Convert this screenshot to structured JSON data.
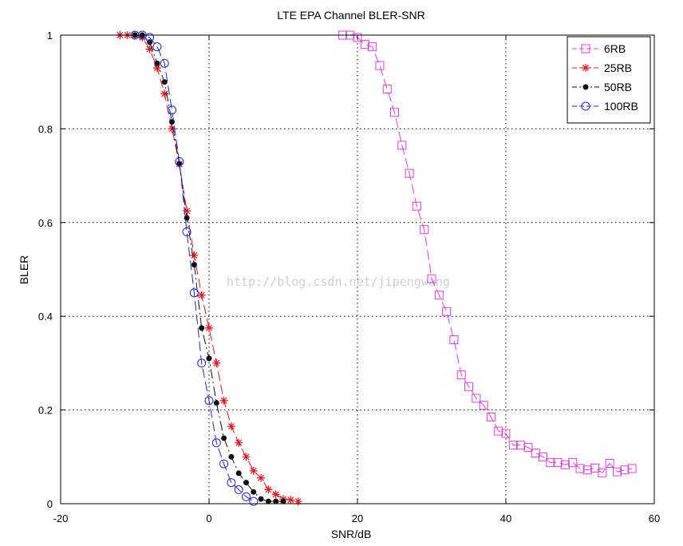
{
  "chart_data": {
    "type": "line",
    "title": "LTE EPA Channel BLER-SNR",
    "xlabel": "SNR/dB",
    "ylabel": "BLER",
    "xlim": [
      -20,
      60
    ],
    "ylim": [
      0,
      1
    ],
    "xticks": [
      "-20",
      "0",
      "20",
      "40",
      "60"
    ],
    "yticks": [
      "0",
      "0.2",
      "0.4",
      "0.6",
      "0.8",
      "1"
    ],
    "grid": true,
    "legend_position": "top-right",
    "watermark": "http://blog.csdn.net/jipengwang",
    "series": [
      {
        "name": "6RB",
        "color": "#e83ce0",
        "marker": "square",
        "dash": "dashed",
        "x": [
          18,
          19,
          20,
          21,
          22,
          23,
          24,
          25,
          26,
          27,
          28,
          29,
          30,
          31,
          32,
          33,
          34,
          35,
          36,
          37,
          38,
          39,
          40,
          41,
          42,
          43,
          44,
          45,
          46,
          47,
          48,
          49,
          50,
          51,
          52,
          53,
          54,
          55,
          56,
          57
        ],
        "y": [
          1.0,
          1.0,
          0.995,
          0.98,
          0.975,
          0.935,
          0.885,
          0.835,
          0.765,
          0.705,
          0.635,
          0.585,
          0.48,
          0.445,
          0.41,
          0.35,
          0.275,
          0.25,
          0.225,
          0.21,
          0.185,
          0.155,
          0.15,
          0.125,
          0.125,
          0.12,
          0.108,
          0.1,
          0.088,
          0.088,
          0.083,
          0.088,
          0.075,
          0.072,
          0.076,
          0.066,
          0.086,
          0.068,
          0.072,
          0.075
        ]
      },
      {
        "name": "25RB",
        "color": "#e8141e",
        "marker": "star",
        "dash": "dashed",
        "x": [
          -12,
          -11,
          -10,
          -9,
          -8,
          -7,
          -6,
          -5,
          -4,
          -3,
          -2,
          -1,
          0,
          1,
          2,
          3,
          4,
          5,
          6,
          7,
          8,
          9,
          10,
          11,
          12
        ],
        "y": [
          1.0,
          1.0,
          1.0,
          0.995,
          0.97,
          0.93,
          0.875,
          0.8,
          0.725,
          0.625,
          0.53,
          0.445,
          0.375,
          0.3,
          0.22,
          0.165,
          0.13,
          0.1,
          0.07,
          0.055,
          0.03,
          0.02,
          0.01,
          0.008,
          0.005
        ]
      },
      {
        "name": "50RB",
        "color": "#111111",
        "marker": "dot",
        "dash": "dashdot",
        "x": [
          -10,
          -9,
          -8,
          -7,
          -6,
          -5,
          -4,
          -3,
          -2,
          -1,
          0,
          1,
          2,
          3,
          4,
          5,
          6,
          7,
          8,
          9,
          10
        ],
        "y": [
          1.0,
          1.0,
          0.985,
          0.94,
          0.9,
          0.815,
          0.725,
          0.61,
          0.51,
          0.375,
          0.31,
          0.215,
          0.14,
          0.1,
          0.065,
          0.045,
          0.025,
          0.01,
          0.005,
          0.005,
          0.005
        ]
      },
      {
        "name": "100RB",
        "color": "#1c26e0",
        "marker": "circle",
        "dash": "dashed",
        "x": [
          -10,
          -9,
          -8,
          -7,
          -6,
          -5,
          -4,
          -3,
          -2,
          -1,
          0,
          1,
          2,
          3,
          4,
          5,
          6
        ],
        "y": [
          1.0,
          1.0,
          0.995,
          0.975,
          0.94,
          0.84,
          0.73,
          0.58,
          0.45,
          0.3,
          0.22,
          0.13,
          0.085,
          0.045,
          0.03,
          0.015,
          0.005
        ]
      }
    ]
  }
}
